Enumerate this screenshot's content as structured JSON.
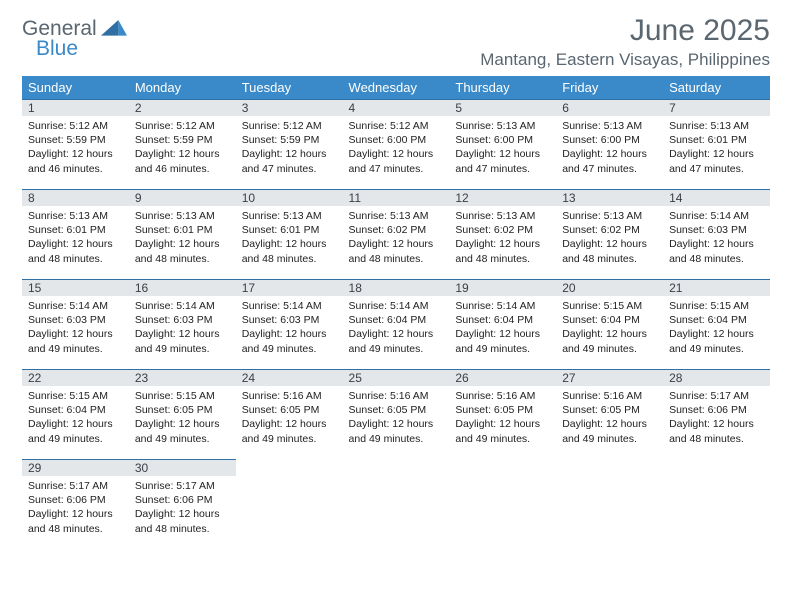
{
  "brand": {
    "line1": "General",
    "line2": "Blue"
  },
  "title": "June 2025",
  "location": "Mantang, Eastern Visayas, Philippines",
  "colors": {
    "header_bg": "#3a8ac9",
    "header_fg": "#ffffff",
    "daynum_bg": "#e4e7ea",
    "daynum_border": "#2f6fa3",
    "text": "#222222",
    "muted": "#5a6670",
    "page_bg": "#ffffff"
  },
  "weekdays": [
    "Sunday",
    "Monday",
    "Tuesday",
    "Wednesday",
    "Thursday",
    "Friday",
    "Saturday"
  ],
  "days": [
    {
      "n": "1",
      "sr": "5:12 AM",
      "ss": "5:59 PM",
      "dl": "12 hours and 46 minutes."
    },
    {
      "n": "2",
      "sr": "5:12 AM",
      "ss": "5:59 PM",
      "dl": "12 hours and 46 minutes."
    },
    {
      "n": "3",
      "sr": "5:12 AM",
      "ss": "5:59 PM",
      "dl": "12 hours and 47 minutes."
    },
    {
      "n": "4",
      "sr": "5:12 AM",
      "ss": "6:00 PM",
      "dl": "12 hours and 47 minutes."
    },
    {
      "n": "5",
      "sr": "5:13 AM",
      "ss": "6:00 PM",
      "dl": "12 hours and 47 minutes."
    },
    {
      "n": "6",
      "sr": "5:13 AM",
      "ss": "6:00 PM",
      "dl": "12 hours and 47 minutes."
    },
    {
      "n": "7",
      "sr": "5:13 AM",
      "ss": "6:01 PM",
      "dl": "12 hours and 47 minutes."
    },
    {
      "n": "8",
      "sr": "5:13 AM",
      "ss": "6:01 PM",
      "dl": "12 hours and 48 minutes."
    },
    {
      "n": "9",
      "sr": "5:13 AM",
      "ss": "6:01 PM",
      "dl": "12 hours and 48 minutes."
    },
    {
      "n": "10",
      "sr": "5:13 AM",
      "ss": "6:01 PM",
      "dl": "12 hours and 48 minutes."
    },
    {
      "n": "11",
      "sr": "5:13 AM",
      "ss": "6:02 PM",
      "dl": "12 hours and 48 minutes."
    },
    {
      "n": "12",
      "sr": "5:13 AM",
      "ss": "6:02 PM",
      "dl": "12 hours and 48 minutes."
    },
    {
      "n": "13",
      "sr": "5:13 AM",
      "ss": "6:02 PM",
      "dl": "12 hours and 48 minutes."
    },
    {
      "n": "14",
      "sr": "5:14 AM",
      "ss": "6:03 PM",
      "dl": "12 hours and 48 minutes."
    },
    {
      "n": "15",
      "sr": "5:14 AM",
      "ss": "6:03 PM",
      "dl": "12 hours and 49 minutes."
    },
    {
      "n": "16",
      "sr": "5:14 AM",
      "ss": "6:03 PM",
      "dl": "12 hours and 49 minutes."
    },
    {
      "n": "17",
      "sr": "5:14 AM",
      "ss": "6:03 PM",
      "dl": "12 hours and 49 minutes."
    },
    {
      "n": "18",
      "sr": "5:14 AM",
      "ss": "6:04 PM",
      "dl": "12 hours and 49 minutes."
    },
    {
      "n": "19",
      "sr": "5:14 AM",
      "ss": "6:04 PM",
      "dl": "12 hours and 49 minutes."
    },
    {
      "n": "20",
      "sr": "5:15 AM",
      "ss": "6:04 PM",
      "dl": "12 hours and 49 minutes."
    },
    {
      "n": "21",
      "sr": "5:15 AM",
      "ss": "6:04 PM",
      "dl": "12 hours and 49 minutes."
    },
    {
      "n": "22",
      "sr": "5:15 AM",
      "ss": "6:04 PM",
      "dl": "12 hours and 49 minutes."
    },
    {
      "n": "23",
      "sr": "5:15 AM",
      "ss": "6:05 PM",
      "dl": "12 hours and 49 minutes."
    },
    {
      "n": "24",
      "sr": "5:16 AM",
      "ss": "6:05 PM",
      "dl": "12 hours and 49 minutes."
    },
    {
      "n": "25",
      "sr": "5:16 AM",
      "ss": "6:05 PM",
      "dl": "12 hours and 49 minutes."
    },
    {
      "n": "26",
      "sr": "5:16 AM",
      "ss": "6:05 PM",
      "dl": "12 hours and 49 minutes."
    },
    {
      "n": "27",
      "sr": "5:16 AM",
      "ss": "6:05 PM",
      "dl": "12 hours and 49 minutes."
    },
    {
      "n": "28",
      "sr": "5:17 AM",
      "ss": "6:06 PM",
      "dl": "12 hours and 48 minutes."
    },
    {
      "n": "29",
      "sr": "5:17 AM",
      "ss": "6:06 PM",
      "dl": "12 hours and 48 minutes."
    },
    {
      "n": "30",
      "sr": "5:17 AM",
      "ss": "6:06 PM",
      "dl": "12 hours and 48 minutes."
    }
  ],
  "labels": {
    "sunrise": "Sunrise:",
    "sunset": "Sunset:",
    "daylight": "Daylight:"
  },
  "layout": {
    "start_weekday": 0,
    "cols": 7,
    "rows": 5
  }
}
